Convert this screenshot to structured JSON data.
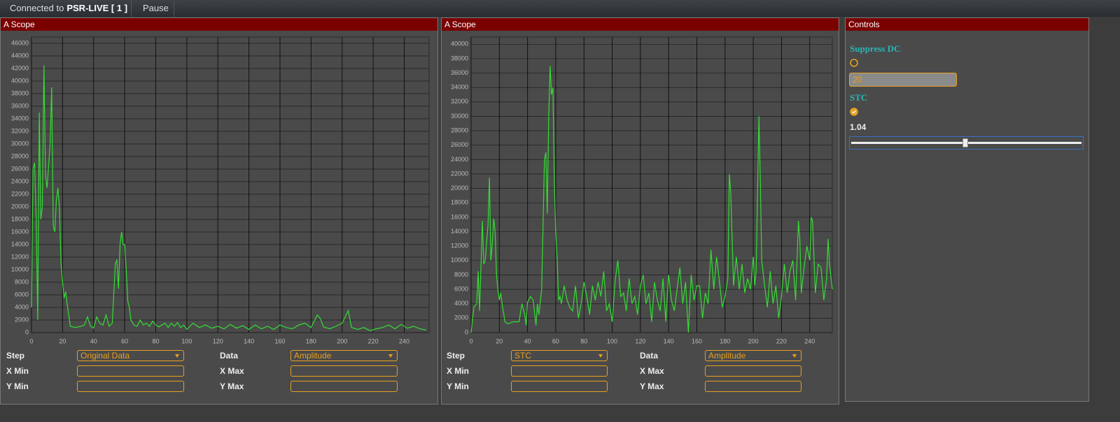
{
  "toolbar": {
    "status_prefix": "Connected to",
    "status_target": "PSR-LIVE [ 1 ]",
    "pause": "Pause"
  },
  "chart_data": [
    {
      "type": "line",
      "title": "A Scope",
      "x": [
        0,
        1,
        2,
        3,
        4,
        5,
        6,
        7,
        8,
        9,
        10,
        12,
        13,
        14,
        15,
        16,
        17,
        18,
        19,
        20,
        21,
        22,
        23,
        25,
        28,
        30,
        32,
        34,
        36,
        38,
        40,
        42,
        44,
        46,
        48,
        50,
        52,
        54,
        55,
        56,
        57,
        58,
        59,
        60,
        61,
        62,
        63,
        64,
        66,
        68,
        70,
        72,
        74,
        76,
        78,
        80,
        82,
        84,
        86,
        88,
        90,
        92,
        94,
        96,
        98,
        100,
        104,
        108,
        112,
        116,
        120,
        124,
        128,
        132,
        136,
        140,
        144,
        148,
        152,
        156,
        160,
        164,
        168,
        172,
        176,
        180,
        184,
        186,
        188,
        192,
        196,
        200,
        204,
        206,
        210,
        214,
        218,
        222,
        226,
        230,
        234,
        238,
        242,
        246,
        250,
        254
      ],
      "series": [
        {
          "color": "#33dd33",
          "values": [
            4000,
            26000,
            27000,
            18000,
            2000,
            35000,
            18000,
            20000,
            42500,
            25000,
            23000,
            30000,
            39000,
            17000,
            16000,
            21000,
            23000,
            20000,
            11000,
            8000,
            5500,
            6500,
            4500,
            1000,
            800,
            900,
            1000,
            1200,
            2500,
            1000,
            700,
            2500,
            1500,
            1200,
            2800,
            1000,
            1500,
            11000,
            11500,
            7000,
            14000,
            16000,
            14000,
            14000,
            10000,
            5000,
            4000,
            2000,
            1200,
            1000,
            2000,
            1200,
            1500,
            1000,
            1800,
            1200,
            900,
            1200,
            1500,
            800,
            1500,
            1000,
            1600,
            800,
            1200,
            500,
            1500,
            800,
            1200,
            700,
            1000,
            600,
            1300,
            700,
            1100,
            500,
            1200,
            600,
            1000,
            500,
            1200,
            800,
            600,
            1200,
            1500,
            800,
            2800,
            2200,
            900,
            600,
            1000,
            1500,
            3500,
            800,
            500,
            800,
            300,
            600,
            800,
            1200,
            600,
            1300,
            700,
            1000,
            600,
            400
          ]
        }
      ],
      "xlim": [
        0,
        256
      ],
      "xticks": [
        0,
        20,
        40,
        60,
        80,
        100,
        120,
        140,
        160,
        180,
        200,
        220,
        240
      ],
      "ylim": [
        0,
        47000
      ],
      "yticks": [
        0,
        2000,
        4000,
        6000,
        8000,
        10000,
        12000,
        14000,
        16000,
        18000,
        20000,
        22000,
        24000,
        26000,
        28000,
        30000,
        32000,
        34000,
        36000,
        38000,
        40000,
        42000,
        44000,
        46000
      ],
      "grid": true
    },
    {
      "type": "line",
      "title": "A Scope",
      "x": [
        0,
        2,
        4,
        5,
        6,
        8,
        9,
        10,
        12,
        13,
        14,
        15,
        16,
        17,
        18,
        19,
        20,
        21,
        22,
        24,
        26,
        30,
        34,
        36,
        38,
        39,
        40,
        42,
        44,
        46,
        47,
        48,
        50,
        52,
        53,
        54,
        55,
        56,
        57,
        58,
        59,
        60,
        61,
        62,
        63,
        64,
        66,
        68,
        70,
        72,
        74,
        76,
        78,
        80,
        82,
        84,
        86,
        88,
        90,
        92,
        94,
        96,
        98,
        100,
        102,
        104,
        106,
        108,
        110,
        112,
        114,
        116,
        118,
        120,
        122,
        124,
        126,
        128,
        130,
        132,
        134,
        136,
        138,
        140,
        142,
        144,
        146,
        148,
        150,
        152,
        154,
        156,
        158,
        160,
        162,
        164,
        166,
        168,
        170,
        172,
        174,
        176,
        178,
        180,
        182,
        183,
        184,
        186,
        188,
        190,
        192,
        194,
        196,
        198,
        200,
        201,
        202,
        204,
        205,
        206,
        208,
        210,
        212,
        214,
        216,
        218,
        220,
        222,
        224,
        226,
        228,
        230,
        232,
        233,
        234,
        236,
        238,
        240,
        241,
        242,
        244,
        246,
        248,
        250,
        252,
        253,
        254,
        256
      ],
      "series": [
        {
          "color": "#33dd33",
          "values": [
            0,
            3500,
            4000,
            8500,
            3000,
            15500,
            9500,
            10000,
            15000,
            21500,
            10000,
            12000,
            15800,
            14000,
            8000,
            6000,
            4500,
            5500,
            4000,
            1500,
            1200,
            1500,
            1500,
            4000,
            2500,
            1000,
            4200,
            5000,
            4500,
            1000,
            4000,
            2500,
            6000,
            24000,
            25000,
            16500,
            30000,
            37000,
            33000,
            34000,
            21000,
            14000,
            10000,
            4500,
            5000,
            4000,
            6500,
            4500,
            3500,
            3000,
            6500,
            2000,
            4000,
            7000,
            5000,
            2500,
            6500,
            4500,
            7000,
            5000,
            8500,
            3000,
            4000,
            1500,
            7000,
            10000,
            5000,
            5500,
            3000,
            7500,
            4000,
            5000,
            2500,
            6500,
            8000,
            4000,
            5500,
            1500,
            7000,
            4500,
            3000,
            7500,
            1500,
            8000,
            4500,
            3000,
            6000,
            9000,
            4000,
            7000,
            0,
            8000,
            4500,
            6500,
            6500,
            2000,
            5500,
            4000,
            11500,
            6000,
            10500,
            7000,
            3500,
            5000,
            7500,
            22000,
            19500,
            6500,
            10500,
            6000,
            9500,
            5500,
            7500,
            6000,
            10500,
            6500,
            8500,
            30000,
            21000,
            10000,
            6500,
            3500,
            8500,
            4000,
            6500,
            2000,
            5000,
            9500,
            5500,
            8500,
            10000,
            4500,
            15500,
            13000,
            5500,
            9000,
            12000,
            10000,
            16000,
            15500,
            5500,
            9500,
            9000,
            4500,
            7500,
            13000,
            9500,
            6000
          ]
        }
      ],
      "xlim": [
        0,
        256
      ],
      "xticks": [
        0,
        20,
        40,
        60,
        80,
        100,
        120,
        140,
        160,
        180,
        200,
        220,
        240
      ],
      "ylim": [
        0,
        41000
      ],
      "yticks": [
        0,
        2000,
        4000,
        6000,
        8000,
        10000,
        12000,
        14000,
        16000,
        18000,
        20000,
        22000,
        24000,
        26000,
        28000,
        30000,
        32000,
        34000,
        36000,
        38000,
        40000
      ],
      "grid": true
    }
  ],
  "scope_forms": [
    {
      "step_label": "Step",
      "step_value": "Original Data",
      "data_label": "Data",
      "data_value": "Amplitude",
      "xmin_label": "X Min",
      "xmax_label": "X Max",
      "ymin_label": "Y Min",
      "ymax_label": "Y Max"
    },
    {
      "step_label": "Step",
      "step_value": "STC",
      "data_label": "Data",
      "data_value": "Amplitude",
      "xmin_label": "X Min",
      "xmax_label": "X Max",
      "ymin_label": "Y Min",
      "ymax_label": "Y Max"
    }
  ],
  "controls": {
    "title": "Controls",
    "suppress_dc_label": "Suppress DC",
    "suppress_dc_checked": false,
    "suppress_dc_value": "20",
    "stc_label": "STC",
    "stc_checked": true,
    "stc_value": 1.04
  }
}
